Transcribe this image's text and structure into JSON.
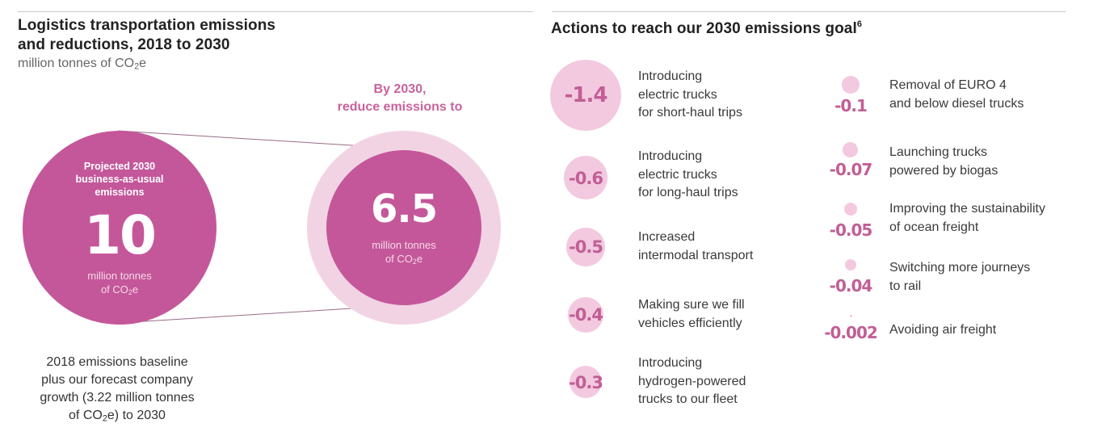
{
  "left": {
    "title_line1": "Logistics transportation emissions",
    "title_line2": "and reductions, 2018 to 2030",
    "unit_prefix": "million tonnes of CO",
    "unit_sub": "2",
    "unit_suffix": "e",
    "bau": {
      "label_line1": "Projected 2030",
      "label_line2": "business-as-usual",
      "label_line3": "emissions",
      "value": "10",
      "unit_line1": "million tonnes",
      "unit_line2_prefix": "of CO",
      "unit_line2_sub": "2",
      "unit_line2_suffix": "e"
    },
    "target": {
      "caption_line1": "By 2030,",
      "caption_line2": "reduce emissions to",
      "value": "6.5",
      "unit_line1": "million tonnes",
      "unit_line2_prefix": "of CO",
      "unit_line2_sub": "2",
      "unit_line2_suffix": "e"
    },
    "baseline_note": {
      "line1": "2018 emissions baseline",
      "line2": "plus our forecast company",
      "line3": "growth (3.22 million tonnes",
      "line4_prefix": "of CO",
      "line4_sub": "2",
      "line4_suffix": "e) to 2030"
    }
  },
  "right": {
    "title": "Actions to reach our 2030 emissions goal",
    "title_footnote": "6",
    "actions": [
      {
        "value": "-1.4",
        "text": "Introducing\nelectric trucks\nfor short-haul trips"
      },
      {
        "value": "-0.6",
        "text": "Introducing\nelectric trucks\nfor long-haul trips"
      },
      {
        "value": "-0.5",
        "text": "Increased\nintermodal transport"
      },
      {
        "value": "-0.4",
        "text": "Making sure we fill\nvehicles efficiently"
      },
      {
        "value": "-0.3",
        "text": "Introducing\nhydrogen-powered\ntrucks to our fleet"
      },
      {
        "value": "-0.1",
        "text": "Removal of EURO 4\nand below diesel trucks"
      },
      {
        "value": "-0.07",
        "text": "Launching trucks\npowered by biogas"
      },
      {
        "value": "-0.05",
        "text": "Improving the sustainability\nof ocean freight"
      },
      {
        "value": "-0.04",
        "text": "Switching more journeys\nto rail"
      },
      {
        "value": "-0.002",
        "text": "Avoiding air freight"
      }
    ]
  },
  "colors": {
    "magenta": "#c9629b",
    "magenta_dark": "#c4579a",
    "light_pink": "#f3c9e0",
    "halo_pink": "#f2d3e4"
  }
}
